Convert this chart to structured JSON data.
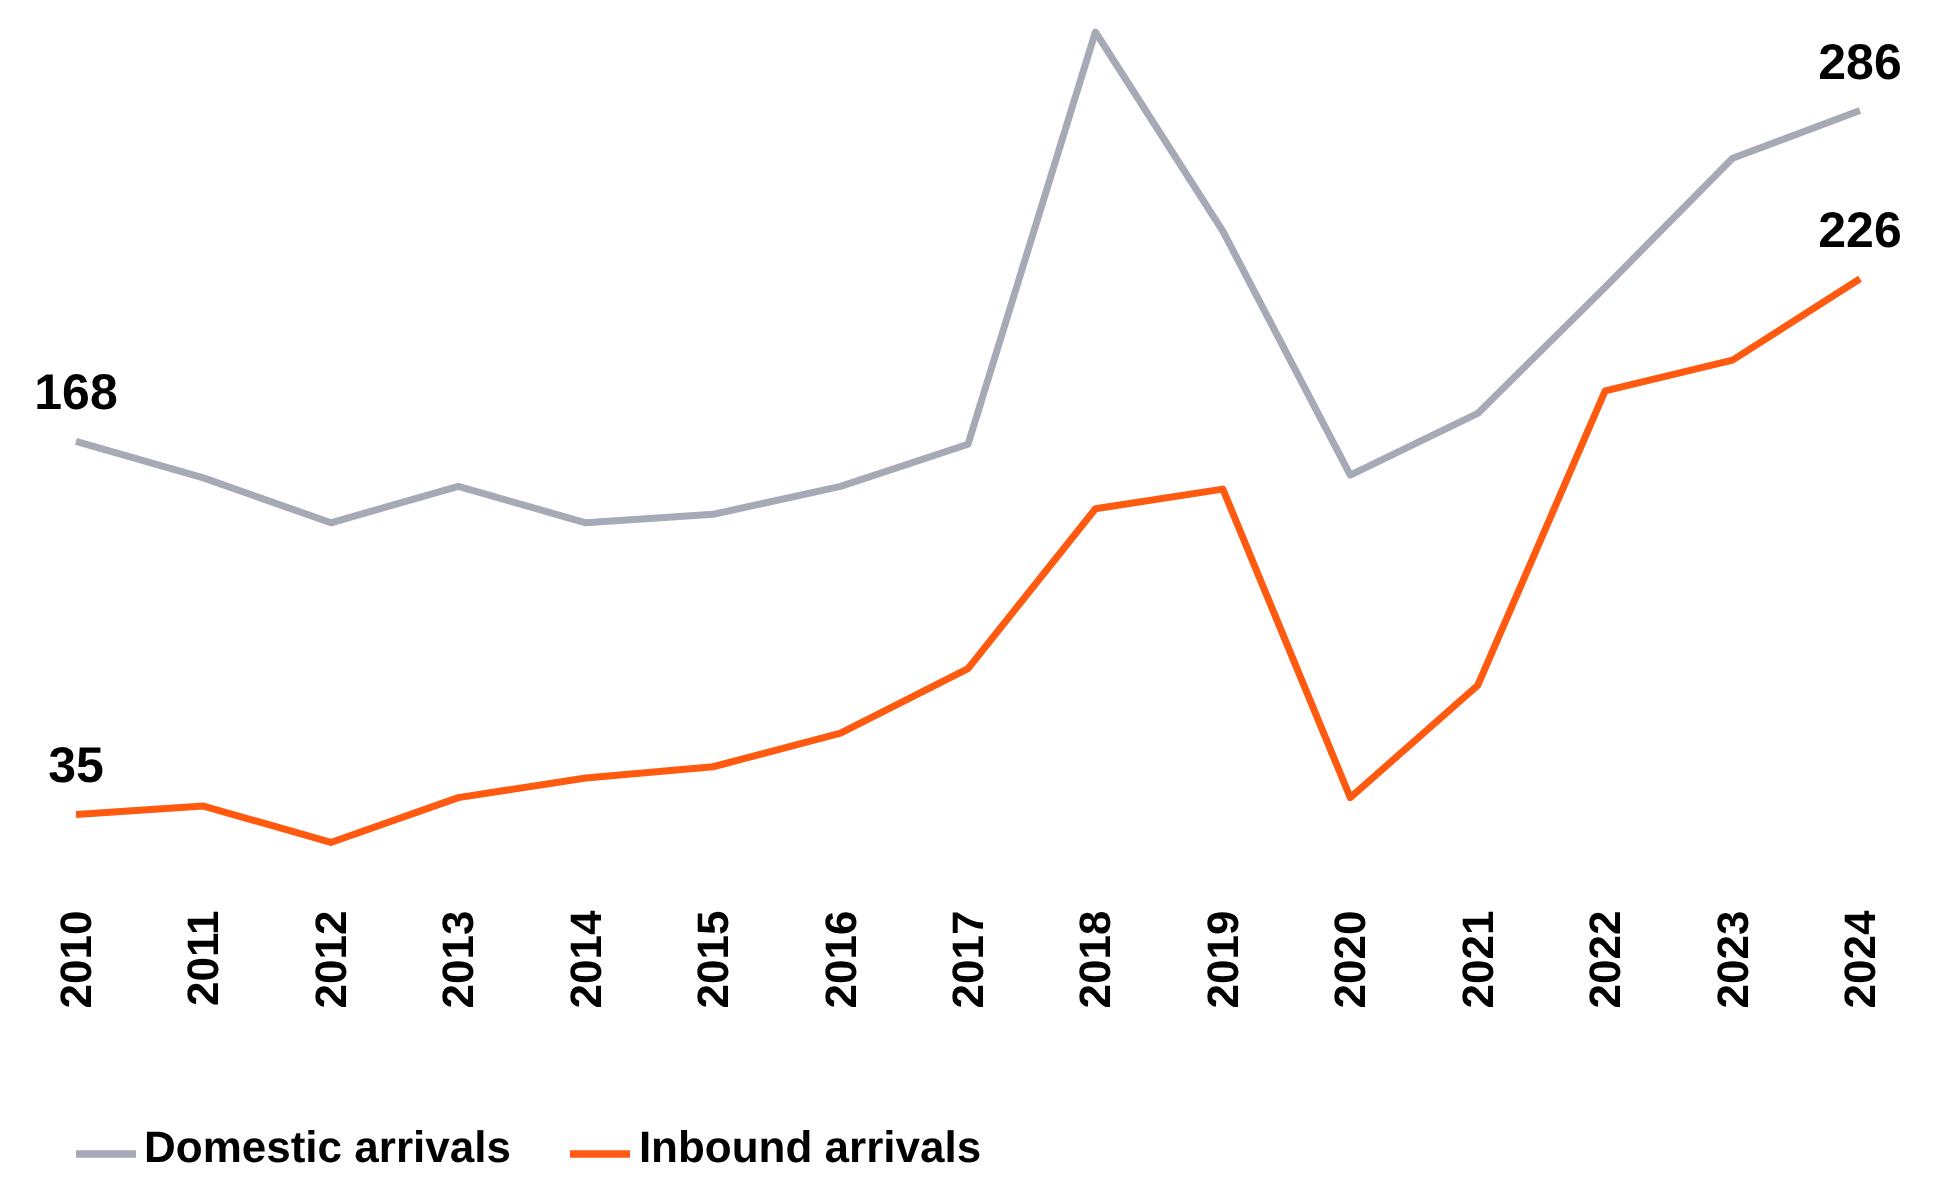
{
  "chart_data": {
    "type": "line",
    "categories": [
      "2010",
      "2011",
      "2012",
      "2013",
      "2014",
      "2015",
      "2016",
      "2017",
      "2018",
      "2019",
      "2020",
      "2021",
      "2022",
      "2023",
      "2024"
    ],
    "series": [
      {
        "name": "Inbound arrivals",
        "color": "#ff5a10",
        "values": [
          35,
          38,
          25,
          41,
          48,
          52,
          64,
          87,
          144,
          151,
          41,
          81,
          186,
          197,
          226
        ],
        "value_labels": [
          "35",
          null,
          null,
          null,
          null,
          null,
          null,
          null,
          null,
          null,
          null,
          null,
          null,
          null,
          "226"
        ]
      },
      {
        "name": "Domestic arrivals",
        "color": "#a6a9b6",
        "values": [
          168,
          155,
          139,
          152,
          139,
          142,
          152,
          167,
          314,
          243,
          156,
          178,
          223,
          269,
          286
        ],
        "value_labels": [
          "168",
          null,
          null,
          null,
          null,
          null,
          null,
          null,
          null,
          null,
          null,
          null,
          null,
          null,
          "286"
        ]
      }
    ],
    "legend": "bottom"
  }
}
